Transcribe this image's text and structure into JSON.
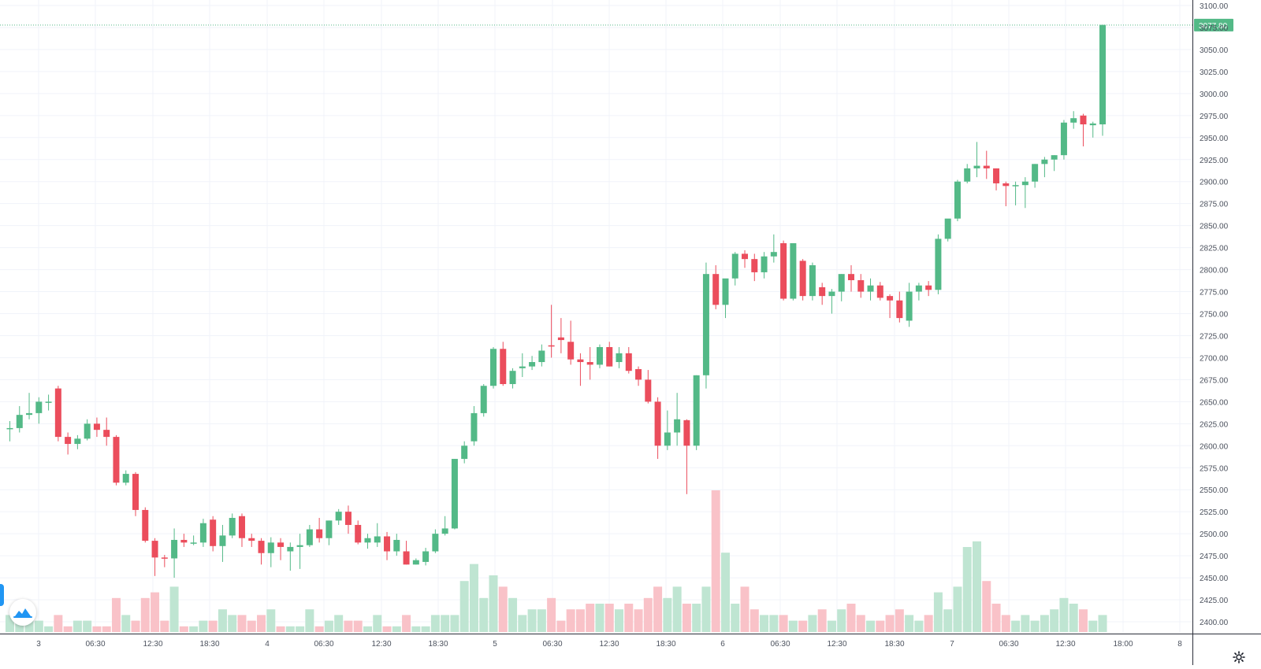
{
  "chart_data": {
    "type": "candlestick",
    "bar_interval_hours": 3,
    "x_labels": [
      {
        "bar": 2,
        "text": "3"
      },
      {
        "bar": 4,
        "text": "06:30"
      },
      {
        "bar": 6,
        "text": "12:30"
      },
      {
        "bar": 8,
        "text": "18:30"
      },
      {
        "bar": 10,
        "text": "4"
      },
      {
        "bar": 12,
        "text": "06:30"
      },
      {
        "bar": 14,
        "text": "12:30"
      },
      {
        "bar": 16,
        "text": "18:30"
      },
      {
        "bar": 18,
        "text": "5"
      },
      {
        "bar": 20,
        "text": "06:30"
      },
      {
        "bar": 22,
        "text": "12:30"
      },
      {
        "bar": 24,
        "text": "18:30"
      },
      {
        "bar": 26,
        "text": "6"
      },
      {
        "bar": 28,
        "text": "06:30"
      },
      {
        "bar": 30,
        "text": "12:30"
      },
      {
        "bar": 32,
        "text": "18:30"
      },
      {
        "bar": 34,
        "text": "7"
      },
      {
        "bar": 36,
        "text": "06:30"
      },
      {
        "bar": 38,
        "text": "12:30"
      },
      {
        "bar": 40,
        "text": "18:00"
      },
      {
        "bar": 42,
        "text": "8"
      }
    ],
    "y_ticks": [
      "2400.00",
      "2425.00",
      "2450.00",
      "2475.00",
      "2500.00",
      "2525.00",
      "2550.00",
      "2575.00",
      "2600.00",
      "2625.00",
      "2650.00",
      "2675.00",
      "2700.00",
      "2725.00",
      "2750.00",
      "2775.00",
      "2800.00",
      "2825.00",
      "2850.00",
      "2875.00",
      "2900.00",
      "2925.00",
      "2950.00",
      "2975.00",
      "3000.00",
      "3025.00",
      "3050.00",
      "3075.00",
      "3100.00"
    ],
    "ylim": [
      2390,
      3105
    ],
    "last_price": "3077.80",
    "grid": true,
    "colors": {
      "up": "#53b987",
      "down": "#eb4d5c",
      "up_volume": "#bfe5d2",
      "down_volume": "#f9c2c8",
      "grid": "#f0f3fa",
      "axis_text": "#4c525e",
      "price_line": "#53b987"
    },
    "candles": [
      [
        2620,
        2628,
        2605,
        2620,
        3
      ],
      [
        2620,
        2645,
        2615,
        2635,
        2
      ],
      [
        2635,
        2660,
        2630,
        2637,
        2
      ],
      [
        2637,
        2655,
        2625,
        2650,
        2
      ],
      [
        2650,
        2658,
        2640,
        2650,
        1
      ],
      [
        2665,
        2668,
        2605,
        2610,
        3
      ],
      [
        2610,
        2615,
        2590,
        2602,
        1
      ],
      [
        2602,
        2612,
        2596,
        2608,
        2
      ],
      [
        2608,
        2630,
        2606,
        2625,
        2
      ],
      [
        2625,
        2632,
        2610,
        2618,
        1
      ],
      [
        2618,
        2632,
        2600,
        2610,
        1
      ],
      [
        2610,
        2612,
        2555,
        2558,
        6
      ],
      [
        2558,
        2572,
        2555,
        2568,
        3
      ],
      [
        2568,
        2570,
        2520,
        2527,
        2
      ],
      [
        2527,
        2530,
        2490,
        2492,
        6
      ],
      [
        2492,
        2495,
        2452,
        2473,
        7
      ],
      [
        2473,
        2476,
        2462,
        2472,
        2
      ],
      [
        2472,
        2506,
        2450,
        2493,
        8
      ],
      [
        2493,
        2500,
        2485,
        2490,
        1
      ],
      [
        2490,
        2498,
        2487,
        2490,
        1
      ],
      [
        2490,
        2517,
        2485,
        2512,
        2
      ],
      [
        2516,
        2520,
        2480,
        2486,
        2
      ],
      [
        2486,
        2510,
        2468,
        2498,
        4
      ],
      [
        2498,
        2523,
        2495,
        2518,
        3
      ],
      [
        2520,
        2523,
        2485,
        2495,
        3
      ],
      [
        2495,
        2500,
        2485,
        2492,
        2
      ],
      [
        2492,
        2495,
        2465,
        2478,
        3
      ],
      [
        2478,
        2496,
        2462,
        2490,
        4
      ],
      [
        2490,
        2495,
        2470,
        2485,
        1
      ],
      [
        2480,
        2490,
        2458,
        2485,
        1
      ],
      [
        2485,
        2500,
        2460,
        2487,
        1
      ],
      [
        2487,
        2510,
        2485,
        2505,
        4
      ],
      [
        2505,
        2518,
        2490,
        2495,
        1
      ],
      [
        2495,
        2515,
        2487,
        2515,
        2
      ],
      [
        2515,
        2528,
        2510,
        2525,
        3
      ],
      [
        2525,
        2532,
        2500,
        2510,
        2
      ],
      [
        2510,
        2515,
        2488,
        2490,
        2
      ],
      [
        2490,
        2500,
        2483,
        2495,
        1
      ],
      [
        2490,
        2512,
        2485,
        2497,
        3
      ],
      [
        2497,
        2502,
        2470,
        2480,
        1
      ],
      [
        2480,
        2500,
        2475,
        2493,
        1
      ],
      [
        2480,
        2492,
        2465,
        2465,
        3
      ],
      [
        2465,
        2472,
        2465,
        2470,
        1
      ],
      [
        2468,
        2484,
        2464,
        2480,
        1
      ],
      [
        2480,
        2505,
        2478,
        2500,
        3
      ],
      [
        2500,
        2520,
        2498,
        2506,
        3
      ],
      [
        2506,
        2585,
        2505,
        2585,
        3
      ],
      [
        2585,
        2605,
        2580,
        2600,
        9
      ],
      [
        2605,
        2645,
        2600,
        2637,
        12
      ],
      [
        2637,
        2670,
        2633,
        2668,
        6
      ],
      [
        2668,
        2712,
        2665,
        2710,
        10
      ],
      [
        2710,
        2718,
        2668,
        2670,
        8
      ],
      [
        2670,
        2688,
        2665,
        2685,
        6
      ],
      [
        2688,
        2705,
        2678,
        2690,
        3
      ],
      [
        2690,
        2702,
        2686,
        2695,
        4
      ],
      [
        2695,
        2715,
        2690,
        2708,
        4
      ],
      [
        2714,
        2760,
        2700,
        2713,
        6
      ],
      [
        2723,
        2745,
        2705,
        2720,
        2
      ],
      [
        2718,
        2742,
        2692,
        2698,
        4
      ],
      [
        2698,
        2705,
        2668,
        2695,
        4
      ],
      [
        2695,
        2712,
        2675,
        2692,
        5
      ],
      [
        2692,
        2715,
        2688,
        2712,
        5
      ],
      [
        2712,
        2718,
        2690,
        2690,
        5
      ],
      [
        2695,
        2712,
        2688,
        2705,
        4
      ],
      [
        2705,
        2712,
        2682,
        2685,
        5
      ],
      [
        2687,
        2690,
        2668,
        2675,
        4
      ],
      [
        2675,
        2686,
        2648,
        2650,
        6
      ],
      [
        2650,
        2655,
        2585,
        2600,
        8
      ],
      [
        2600,
        2640,
        2595,
        2615,
        6
      ],
      [
        2615,
        2660,
        2600,
        2630,
        8
      ],
      [
        2629,
        2630,
        2545,
        2600,
        5
      ],
      [
        2600,
        2680,
        2595,
        2680,
        5
      ],
      [
        2680,
        2808,
        2665,
        2795,
        8
      ],
      [
        2795,
        2805,
        2755,
        2760,
        25
      ],
      [
        2760,
        2788,
        2745,
        2790,
        14
      ],
      [
        2790,
        2820,
        2782,
        2818,
        5
      ],
      [
        2818,
        2822,
        2802,
        2812,
        8
      ],
      [
        2812,
        2818,
        2787,
        2797,
        4
      ],
      [
        2797,
        2820,
        2790,
        2815,
        3
      ],
      [
        2815,
        2840,
        2808,
        2820,
        3
      ],
      [
        2830,
        2833,
        2765,
        2767,
        3
      ],
      [
        2767,
        2830,
        2765,
        2830,
        2
      ],
      [
        2810,
        2812,
        2765,
        2770,
        2
      ],
      [
        2770,
        2808,
        2765,
        2805,
        3
      ],
      [
        2780,
        2785,
        2760,
        2770,
        4
      ],
      [
        2770,
        2778,
        2750,
        2775,
        2
      ],
      [
        2775,
        2795,
        2764,
        2795,
        4
      ],
      [
        2795,
        2805,
        2775,
        2788,
        5
      ],
      [
        2788,
        2795,
        2768,
        2775,
        3
      ],
      [
        2775,
        2790,
        2765,
        2782,
        2
      ],
      [
        2782,
        2786,
        2765,
        2768,
        2
      ],
      [
        2770,
        2772,
        2745,
        2765,
        3
      ],
      [
        2765,
        2775,
        2740,
        2745,
        4
      ],
      [
        2742,
        2785,
        2735,
        2775,
        3
      ],
      [
        2775,
        2785,
        2765,
        2782,
        2
      ],
      [
        2782,
        2787,
        2770,
        2777,
        3
      ],
      [
        2777,
        2840,
        2772,
        2835,
        7
      ],
      [
        2835,
        2855,
        2832,
        2858,
        4
      ],
      [
        2858,
        2902,
        2855,
        2900,
        8
      ],
      [
        2900,
        2920,
        2898,
        2915,
        15
      ],
      [
        2915,
        2945,
        2905,
        2918,
        16
      ],
      [
        2918,
        2935,
        2903,
        2915,
        9
      ],
      [
        2915,
        2915,
        2890,
        2898,
        5
      ],
      [
        2898,
        2900,
        2872,
        2895,
        3
      ],
      [
        2895,
        2900,
        2873,
        2896,
        2
      ],
      [
        2896,
        2905,
        2870,
        2900,
        3
      ],
      [
        2900,
        2920,
        2893,
        2920,
        2
      ],
      [
        2920,
        2928,
        2905,
        2925,
        3
      ],
      [
        2925,
        2930,
        2912,
        2930,
        4
      ],
      [
        2930,
        2970,
        2925,
        2967,
        6
      ],
      [
        2967,
        2980,
        2960,
        2972,
        5
      ],
      [
        2975,
        2977,
        2940,
        2965,
        4
      ],
      [
        2964,
        2968,
        2950,
        2966,
        2
      ],
      [
        2965,
        3078,
        2952,
        3078,
        3
      ]
    ]
  }
}
